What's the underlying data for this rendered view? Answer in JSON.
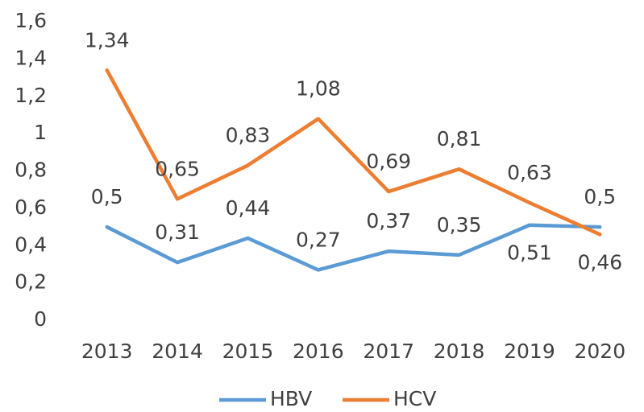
{
  "chart_data": {
    "type": "line",
    "categories": [
      "2013",
      "2014",
      "2015",
      "2016",
      "2017",
      "2018",
      "2019",
      "2020"
    ],
    "series": [
      {
        "name": "HBV",
        "color": "#5b9bd5",
        "values": [
          0.5,
          0.31,
          0.44,
          0.27,
          0.37,
          0.35,
          0.51,
          0.5
        ],
        "value_labels": [
          "0,5",
          "0,31",
          "0,44",
          "0,27",
          "0,37",
          "0,35",
          "0,51",
          "0,5"
        ]
      },
      {
        "name": "HCV",
        "color": "#ed7d31",
        "values": [
          1.34,
          0.65,
          0.83,
          1.08,
          0.69,
          0.81,
          0.63,
          0.46
        ],
        "value_labels": [
          "1,34",
          "0,65",
          "0,83",
          "1,08",
          "0,69",
          "0,81",
          "0,63",
          "0,46"
        ]
      }
    ],
    "ylim": [
      0,
      1.6
    ],
    "yticks": [
      0,
      {
        "value": 0.2,
        "label": "0,2"
      },
      {
        "value": 0.4,
        "label": "0,4"
      },
      {
        "value": 0.6,
        "label": "0,6"
      },
      {
        "value": 0.8,
        "label": "0,8"
      },
      1,
      {
        "value": 1.2,
        "label": "1,2"
      },
      {
        "value": 1.4,
        "label": "1,4"
      },
      {
        "value": 1.6,
        "label": "1,6"
      }
    ],
    "grid": false,
    "legend": "bottom"
  }
}
